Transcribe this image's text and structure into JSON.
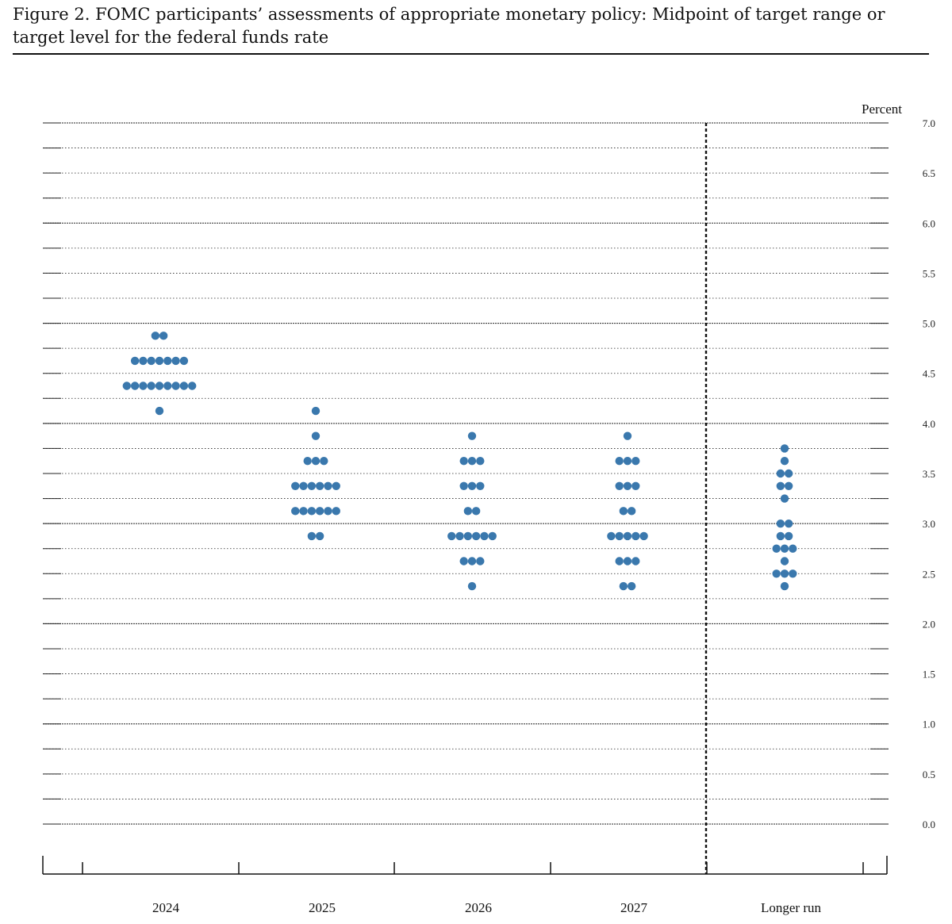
{
  "title": "Figure 2.  FOMC participants’ assessments of appropriate monetary policy:  Midpoint of target range or target level for the federal funds rate",
  "chart_data": {
    "type": "scatter",
    "style": "dot-plot",
    "ylabel": "Percent",
    "ylim": [
      0,
      7
    ],
    "y_ticks": [
      "0.0",
      "0.5",
      "1.0",
      "1.5",
      "2.0",
      "2.5",
      "3.0",
      "3.5",
      "4.0",
      "4.5",
      "5.0",
      "5.5",
      "6.0",
      "6.5",
      "7.0"
    ],
    "y_grid_step": 0.25,
    "grid": true,
    "dot_color": "#3a78ad",
    "categories": [
      "2024",
      "2025",
      "2026",
      "2027",
      "Longer run"
    ],
    "divider_after_category": "2027",
    "series": [
      {
        "category": "2024",
        "points": [
          {
            "y": 4.875,
            "count": 2
          },
          {
            "y": 4.625,
            "count": 7
          },
          {
            "y": 4.375,
            "count": 9
          },
          {
            "y": 4.125,
            "count": 1
          }
        ]
      },
      {
        "category": "2025",
        "points": [
          {
            "y": 4.125,
            "count": 1
          },
          {
            "y": 3.875,
            "count": 1
          },
          {
            "y": 3.625,
            "count": 3
          },
          {
            "y": 3.375,
            "count": 6
          },
          {
            "y": 3.125,
            "count": 6
          },
          {
            "y": 2.875,
            "count": 2
          }
        ]
      },
      {
        "category": "2026",
        "points": [
          {
            "y": 3.875,
            "count": 1
          },
          {
            "y": 3.625,
            "count": 3
          },
          {
            "y": 3.375,
            "count": 3
          },
          {
            "y": 3.125,
            "count": 2
          },
          {
            "y": 2.875,
            "count": 6
          },
          {
            "y": 2.625,
            "count": 3
          },
          {
            "y": 2.375,
            "count": 1
          }
        ]
      },
      {
        "category": "2027",
        "points": [
          {
            "y": 3.875,
            "count": 1
          },
          {
            "y": 3.625,
            "count": 3
          },
          {
            "y": 3.375,
            "count": 3
          },
          {
            "y": 3.125,
            "count": 2
          },
          {
            "y": 2.875,
            "count": 5
          },
          {
            "y": 2.625,
            "count": 3
          },
          {
            "y": 2.375,
            "count": 2
          }
        ]
      },
      {
        "category": "Longer run",
        "points": [
          {
            "y": 3.75,
            "count": 1
          },
          {
            "y": 3.625,
            "count": 1
          },
          {
            "y": 3.5,
            "count": 2
          },
          {
            "y": 3.375,
            "count": 2
          },
          {
            "y": 3.25,
            "count": 1
          },
          {
            "y": 3.0,
            "count": 2
          },
          {
            "y": 2.875,
            "count": 2
          },
          {
            "y": 2.75,
            "count": 3
          },
          {
            "y": 2.625,
            "count": 1
          },
          {
            "y": 2.5,
            "count": 3
          },
          {
            "y": 2.375,
            "count": 1
          }
        ]
      }
    ]
  }
}
